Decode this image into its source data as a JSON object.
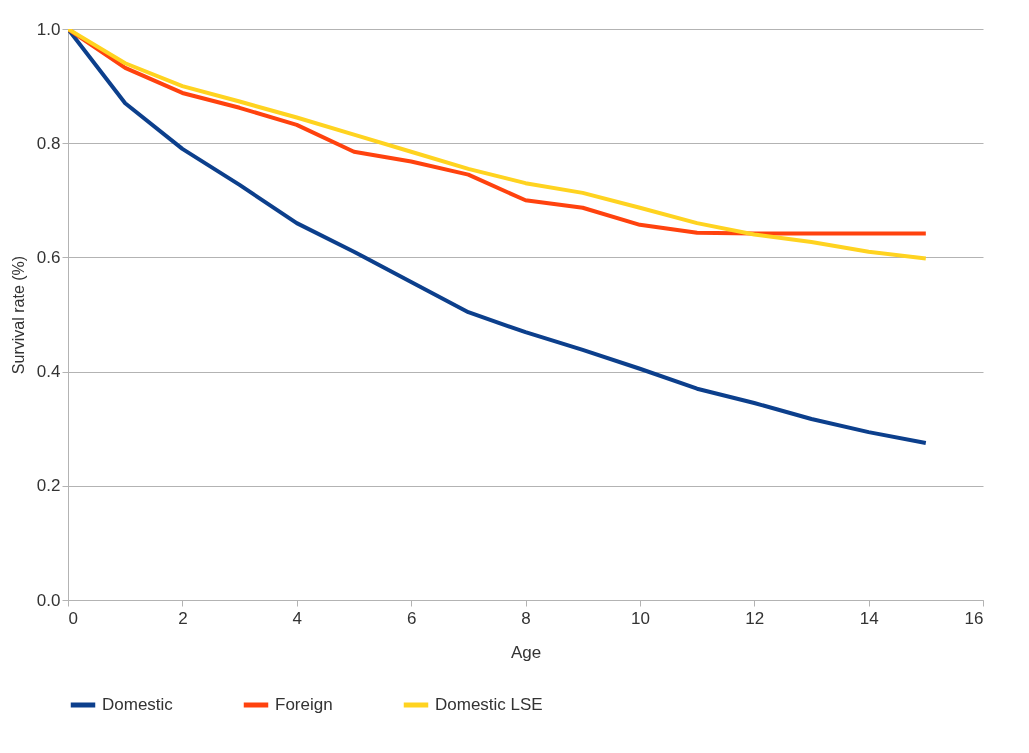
{
  "chart_data": {
    "type": "line",
    "xlabel": "Age",
    "ylabel": "Survival rate (%)",
    "x": [
      0,
      1,
      2,
      3,
      4,
      5,
      6,
      7,
      8,
      9,
      10,
      11,
      12,
      13,
      14,
      15
    ],
    "series": [
      {
        "name": "Domestic",
        "color": "#0c3f8c",
        "values": [
          1.0,
          0.87,
          0.79,
          0.727,
          0.66,
          0.61,
          0.557,
          0.504,
          0.469,
          0.438,
          0.405,
          0.37,
          0.345,
          0.317,
          0.294,
          0.275
        ]
      },
      {
        "name": "Foreign",
        "color": "#ff420e",
        "values": [
          1.0,
          0.932,
          0.888,
          0.862,
          0.832,
          0.785,
          0.768,
          0.745,
          0.7,
          0.687,
          0.657,
          0.643,
          0.642,
          0.642,
          0.642,
          0.642
        ]
      },
      {
        "name": "Domestic LSE",
        "color": "#ffd320",
        "values": [
          1.0,
          0.94,
          0.9,
          0.873,
          0.845,
          0.815,
          0.785,
          0.755,
          0.73,
          0.713,
          0.687,
          0.66,
          0.64,
          0.627,
          0.61,
          0.598
        ]
      }
    ],
    "xlim": [
      0,
      16
    ],
    "xticks": [
      0,
      2,
      4,
      6,
      8,
      10,
      12,
      14,
      16
    ],
    "ylim": [
      0,
      1
    ],
    "yticks": [
      {
        "value": 0,
        "label": "0.0"
      },
      {
        "value": 0.2,
        "label": "0.2"
      },
      {
        "value": 0.4,
        "label": "0.4"
      },
      {
        "value": 0.6,
        "label": "0.6"
      },
      {
        "value": 0.8,
        "label": "0.8"
      },
      {
        "value": 1,
        "label": "1.0"
      }
    ],
    "grid": "y",
    "legend": "bottom",
    "marker": "none",
    "line_style": "solid"
  }
}
